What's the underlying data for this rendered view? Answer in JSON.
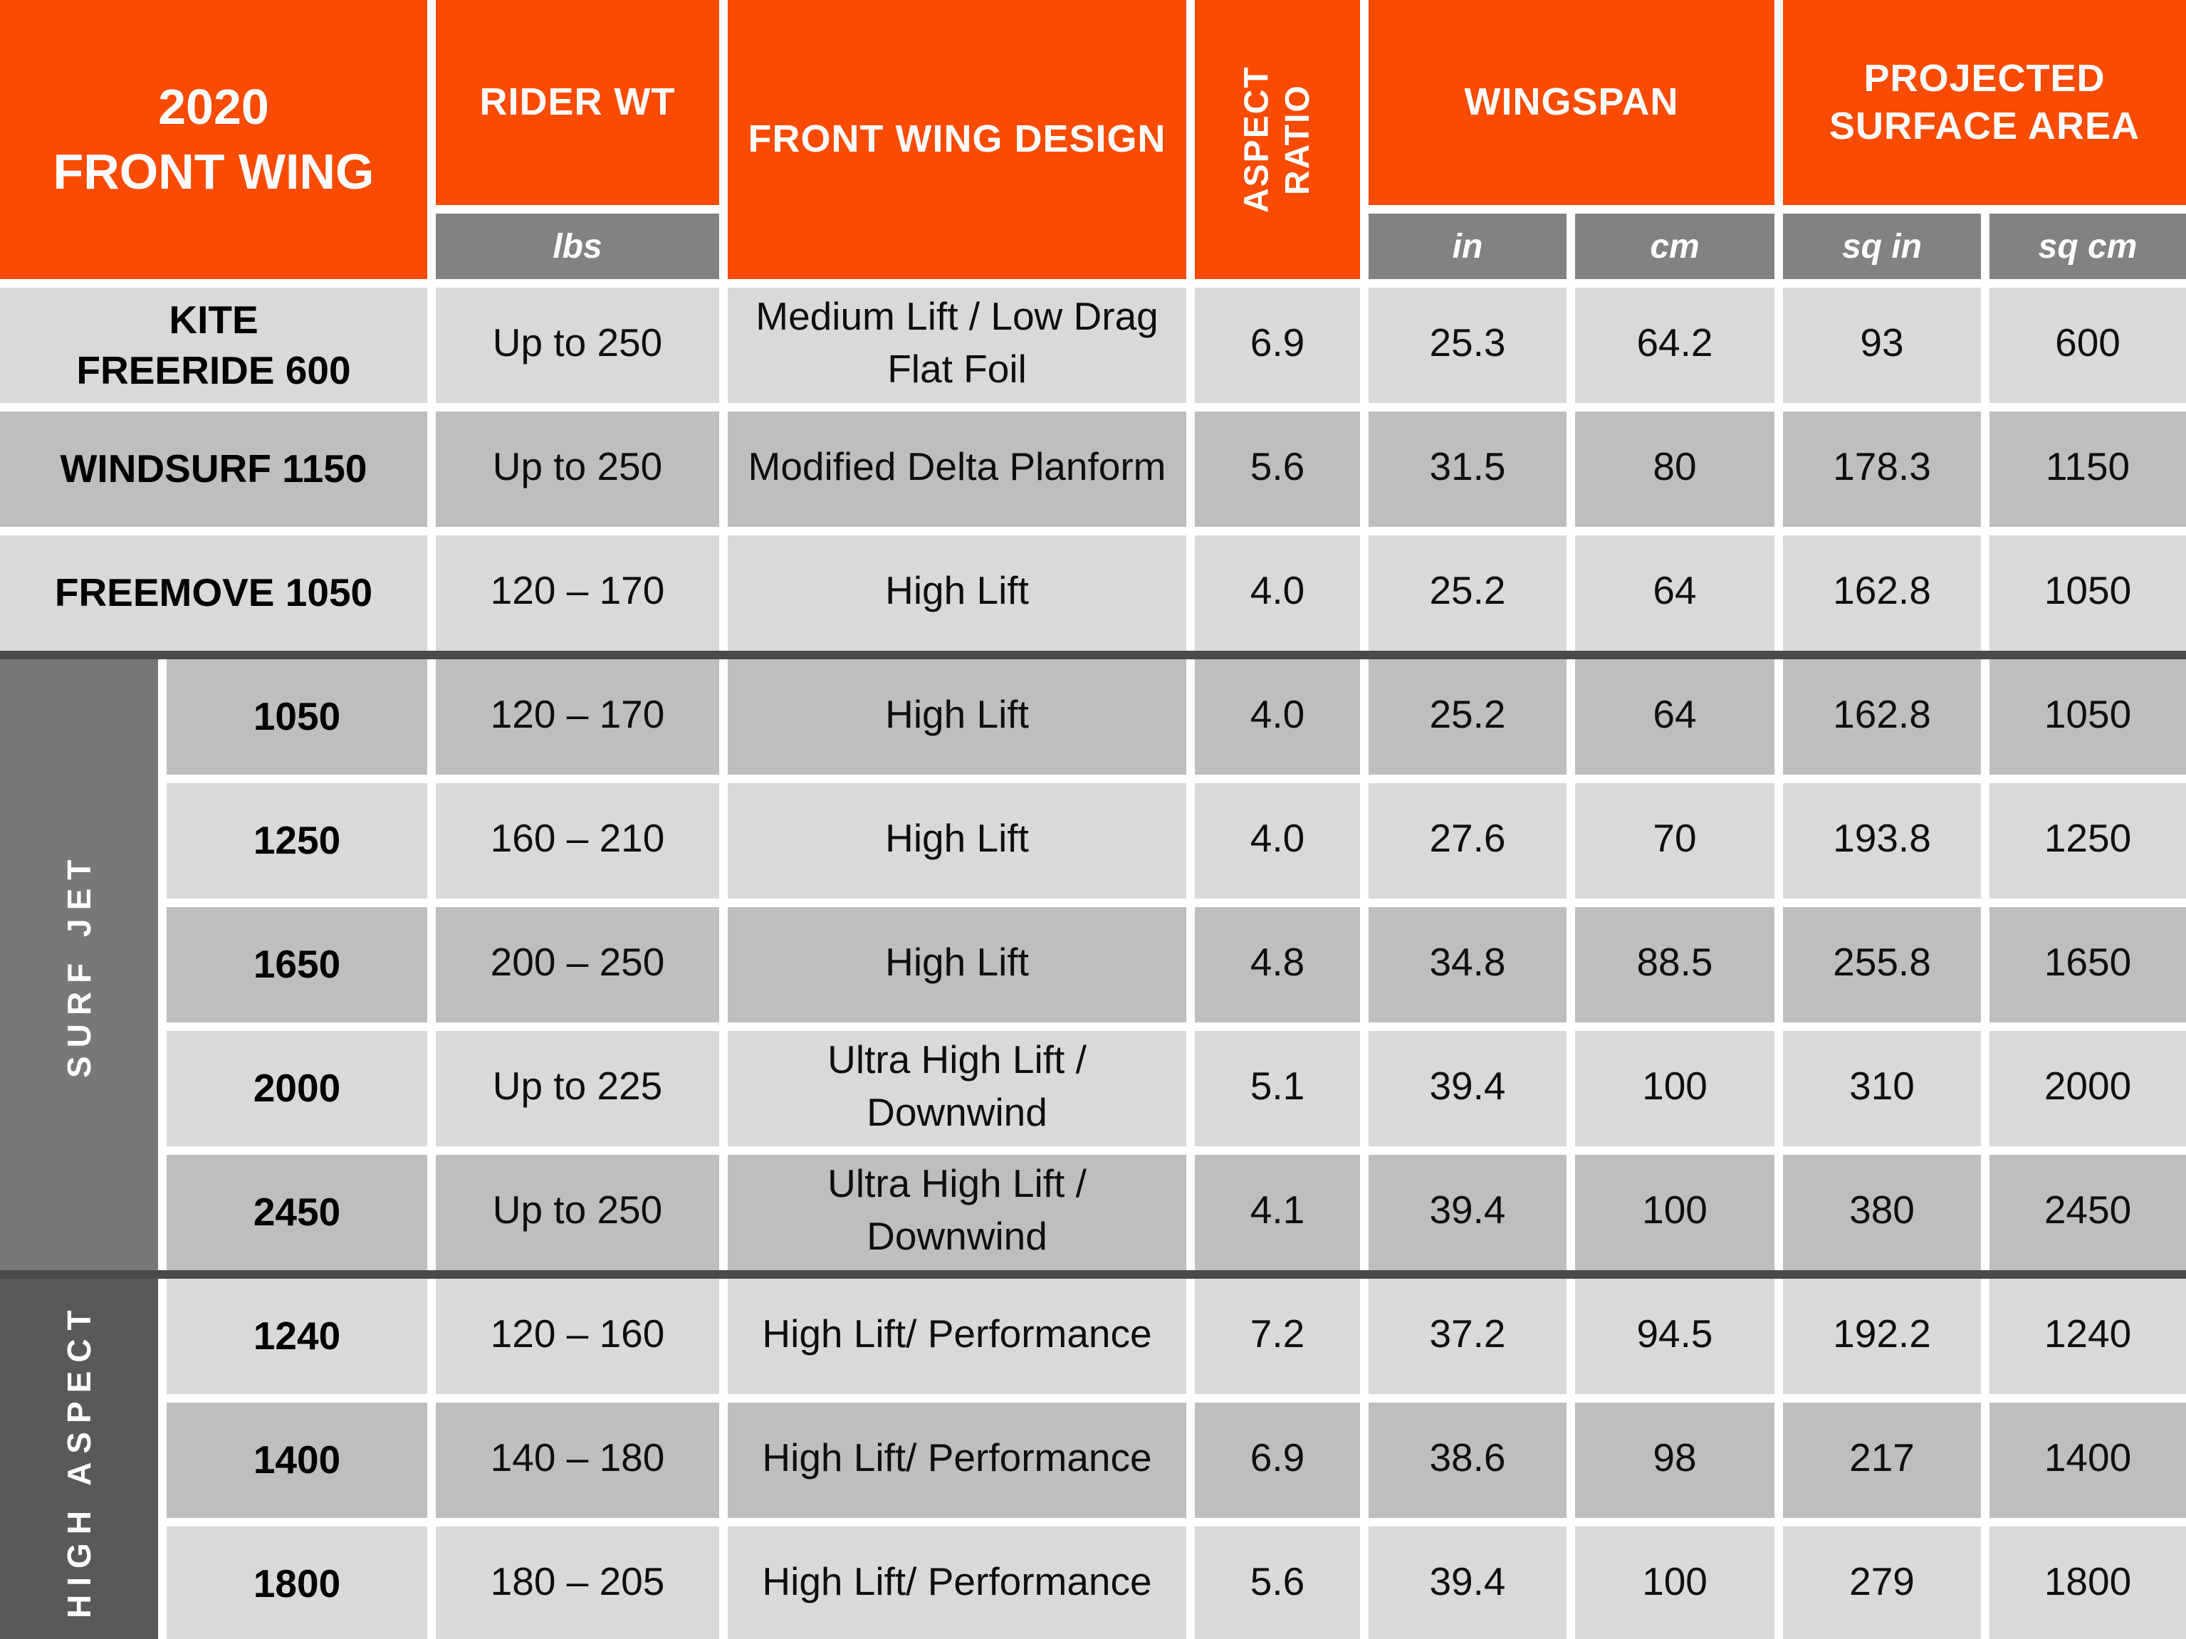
{
  "colors": {
    "orange": "#F94B02",
    "subheader_gray": "#828282",
    "row_light": "#D9D9D9",
    "row_dark": "#BEBEBE",
    "surf_jet_gray": "#787878",
    "high_aspect_gray": "#595959",
    "divider_gray": "#4A4A4A",
    "text_black": "#0E0E0E",
    "header_text_white": "#FFFFFF"
  },
  "chart_data": {
    "type": "table",
    "title": "2020\nFRONT WING",
    "headers": {
      "rider_wt": "RIDER WT",
      "rider_wt_unit": "lbs",
      "design": "FRONT WING DESIGN",
      "aspect_ratio": "ASPECT\nRATIO",
      "wingspan": "WINGSPAN",
      "wingspan_unit_in": "in",
      "wingspan_unit_cm": "cm",
      "projected_surface_area": "PROJECTED\nSURFACE AREA",
      "psa_unit_sqin": "sq in",
      "psa_unit_sqcm": "sq cm"
    },
    "groups": {
      "surf_jet": "SURF JET",
      "high_aspect": "HIGH ASPECT"
    },
    "rows": [
      {
        "group": "",
        "model": "KITE\nFREERIDE 600",
        "rider_wt_lbs": "Up to 250",
        "design": "Medium Lift / Low Drag\nFlat Foil",
        "aspect_ratio": "6.9",
        "wingspan_in": "25.3",
        "wingspan_cm": "64.2",
        "area_sq_in": "93",
        "area_sq_cm": "600"
      },
      {
        "group": "",
        "model": "WINDSURF 1150",
        "rider_wt_lbs": "Up to 250",
        "design": "Modified Delta Planform",
        "aspect_ratio": "5.6",
        "wingspan_in": "31.5",
        "wingspan_cm": "80",
        "area_sq_in": "178.3",
        "area_sq_cm": "1150"
      },
      {
        "group": "",
        "model": "FREEMOVE 1050",
        "rider_wt_lbs": "120 – 170",
        "design": "High Lift",
        "aspect_ratio": "4.0",
        "wingspan_in": "25.2",
        "wingspan_cm": "64",
        "area_sq_in": "162.8",
        "area_sq_cm": "1050"
      },
      {
        "group": "SURF JET",
        "model": "1050",
        "rider_wt_lbs": "120 – 170",
        "design": "High Lift",
        "aspect_ratio": "4.0",
        "wingspan_in": "25.2",
        "wingspan_cm": "64",
        "area_sq_in": "162.8",
        "area_sq_cm": "1050"
      },
      {
        "group": "SURF JET",
        "model": "1250",
        "rider_wt_lbs": "160 – 210",
        "design": "High Lift",
        "aspect_ratio": "4.0",
        "wingspan_in": "27.6",
        "wingspan_cm": "70",
        "area_sq_in": "193.8",
        "area_sq_cm": "1250"
      },
      {
        "group": "SURF JET",
        "model": "1650",
        "rider_wt_lbs": "200 – 250",
        "design": "High Lift",
        "aspect_ratio": "4.8",
        "wingspan_in": "34.8",
        "wingspan_cm": "88.5",
        "area_sq_in": "255.8",
        "area_sq_cm": "1650"
      },
      {
        "group": "SURF JET",
        "model": "2000",
        "rider_wt_lbs": "Up to 225",
        "design": "Ultra High Lift /\nDownwind",
        "aspect_ratio": "5.1",
        "wingspan_in": "39.4",
        "wingspan_cm": "100",
        "area_sq_in": "310",
        "area_sq_cm": "2000"
      },
      {
        "group": "SURF JET",
        "model": "2450",
        "rider_wt_lbs": "Up to 250",
        "design": "Ultra High Lift /\nDownwind",
        "aspect_ratio": "4.1",
        "wingspan_in": "39.4",
        "wingspan_cm": "100",
        "area_sq_in": "380",
        "area_sq_cm": "2450"
      },
      {
        "group": "HIGH ASPECT",
        "model": "1240",
        "rider_wt_lbs": "120 – 160",
        "design": "High Lift/ Performance",
        "aspect_ratio": "7.2",
        "wingspan_in": "37.2",
        "wingspan_cm": "94.5",
        "area_sq_in": "192.2",
        "area_sq_cm": "1240"
      },
      {
        "group": "HIGH ASPECT",
        "model": "1400",
        "rider_wt_lbs": "140 – 180",
        "design": "High Lift/ Performance",
        "aspect_ratio": "6.9",
        "wingspan_in": "38.6",
        "wingspan_cm": "98",
        "area_sq_in": "217",
        "area_sq_cm": "1400"
      },
      {
        "group": "HIGH ASPECT",
        "model": "1800",
        "rider_wt_lbs": "180 – 205",
        "design": "High Lift/ Performance",
        "aspect_ratio": "5.6",
        "wingspan_in": "39.4",
        "wingspan_cm": "100",
        "area_sq_in": "279",
        "area_sq_cm": "1800"
      }
    ]
  }
}
